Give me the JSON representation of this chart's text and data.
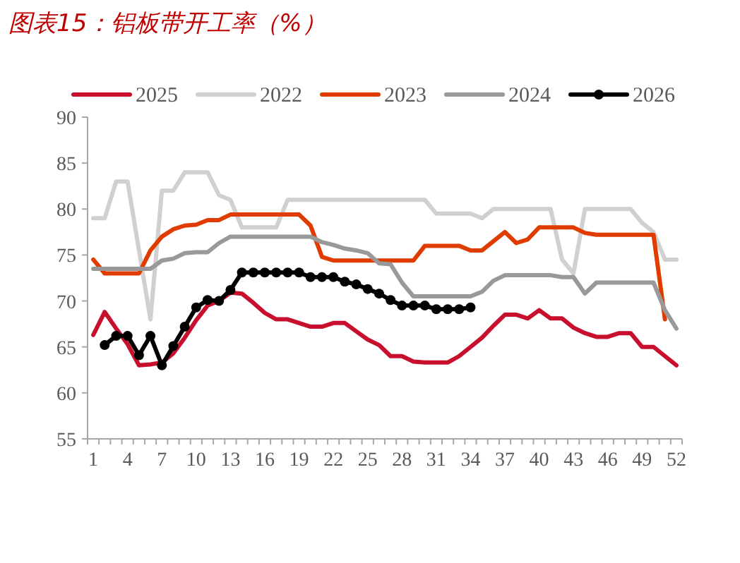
{
  "chart_data": {
    "type": "line",
    "title": "图表15：铝板带开工率（%）",
    "categories": [
      "1",
      null,
      null,
      "4",
      null,
      null,
      "7",
      null,
      null,
      "10",
      null,
      null,
      "13",
      null,
      null,
      "16",
      null,
      null,
      "19",
      null,
      null,
      "22",
      null,
      null,
      "25",
      null,
      null,
      "28",
      null,
      null,
      "31",
      null,
      null,
      "34",
      null,
      null,
      "37",
      null,
      null,
      "40",
      null,
      null,
      "43",
      null,
      null,
      "46",
      null,
      null,
      "49",
      null,
      null,
      "52"
    ],
    "series": [
      {
        "name": "2025",
        "color": "#c8102e",
        "values": [
          66.3,
          68.8,
          67,
          65.3,
          63,
          63.1,
          63.3,
          64.3,
          66,
          67.9,
          69.5,
          70,
          70.9,
          70.8,
          69.8,
          68.7,
          68,
          68,
          67.6,
          67.2,
          67.2,
          67.6,
          67.6,
          66.7,
          65.8,
          65.2,
          64,
          64,
          63.4,
          63.3,
          63.3,
          63.3,
          64,
          65,
          66,
          67.3,
          68.5,
          68.5,
          68.1,
          69,
          68.1,
          68.1,
          67.1,
          66.5,
          66.1,
          66.1,
          66.5,
          66.5,
          65,
          65,
          64,
          63
        ]
      },
      {
        "name": "2022",
        "color": "#d0d0d0",
        "values": [
          79,
          79,
          83,
          83,
          75.5,
          68,
          82,
          82,
          84,
          84,
          84,
          81.5,
          81,
          78,
          78,
          78,
          78,
          81,
          81,
          81,
          81,
          81,
          81,
          81,
          81,
          81,
          81,
          81,
          81,
          81,
          79.5,
          79.5,
          79.5,
          79.5,
          79,
          80,
          80,
          80,
          80,
          80,
          80,
          74.5,
          73,
          80,
          80,
          80,
          80,
          80,
          78.5,
          77.5,
          74.5,
          74.5
        ]
      },
      {
        "name": "2023",
        "color": "#e03c00",
        "values": [
          74.5,
          73,
          73,
          73,
          73,
          75.5,
          77,
          77.8,
          78.2,
          78.3,
          78.8,
          78.8,
          79.4,
          79.4,
          79.4,
          79.4,
          79.4,
          79.4,
          79.4,
          78.2,
          74.8,
          74.4,
          74.4,
          74.4,
          74.4,
          74.4,
          74.4,
          74.4,
          74.4,
          76,
          76,
          76,
          76,
          75.5,
          75.5,
          76.5,
          77.5,
          76.3,
          76.7,
          78,
          78,
          78,
          78,
          77.4,
          77.2,
          77.2,
          77.2,
          77.2,
          77.2,
          77.2,
          68,
          null
        ]
      },
      {
        "name": "2024",
        "color": "#999999",
        "values": [
          73.5,
          73.5,
          73.5,
          73.5,
          73.5,
          73.5,
          74.4,
          74.6,
          75.2,
          75.3,
          75.3,
          76.3,
          77,
          77,
          77,
          77,
          77,
          77,
          77,
          77,
          76.4,
          76.1,
          75.7,
          75.5,
          75.2,
          74.1,
          74,
          72,
          70.5,
          70.5,
          70.5,
          70.5,
          70.5,
          70.5,
          71,
          72.2,
          72.8,
          72.8,
          72.8,
          72.8,
          72.8,
          72.6,
          72.6,
          70.8,
          72,
          72,
          72,
          72,
          72,
          72,
          69,
          67
        ]
      },
      {
        "name": "2026",
        "color": "#000000",
        "marker": "circle",
        "values": [
          null,
          65.2,
          66.2,
          66.2,
          64.1,
          66.2,
          63,
          65.1,
          67.2,
          69.3,
          70.1,
          70,
          71.2,
          73.1,
          73.1,
          73.1,
          73.1,
          73.1,
          73.1,
          72.6,
          72.6,
          72.6,
          72.1,
          71.8,
          71.3,
          70.8,
          70.1,
          69.5,
          69.5,
          69.5,
          69.1,
          69.1,
          69.1,
          69.3,
          null,
          null,
          null,
          null,
          null,
          null,
          null,
          null,
          null,
          null,
          null,
          null,
          null,
          null,
          null,
          null,
          null,
          null
        ]
      }
    ],
    "ylim": [
      55,
      90
    ],
    "yticks": [
      55,
      60,
      65,
      70,
      75,
      80,
      85,
      90
    ],
    "legend": "top"
  }
}
